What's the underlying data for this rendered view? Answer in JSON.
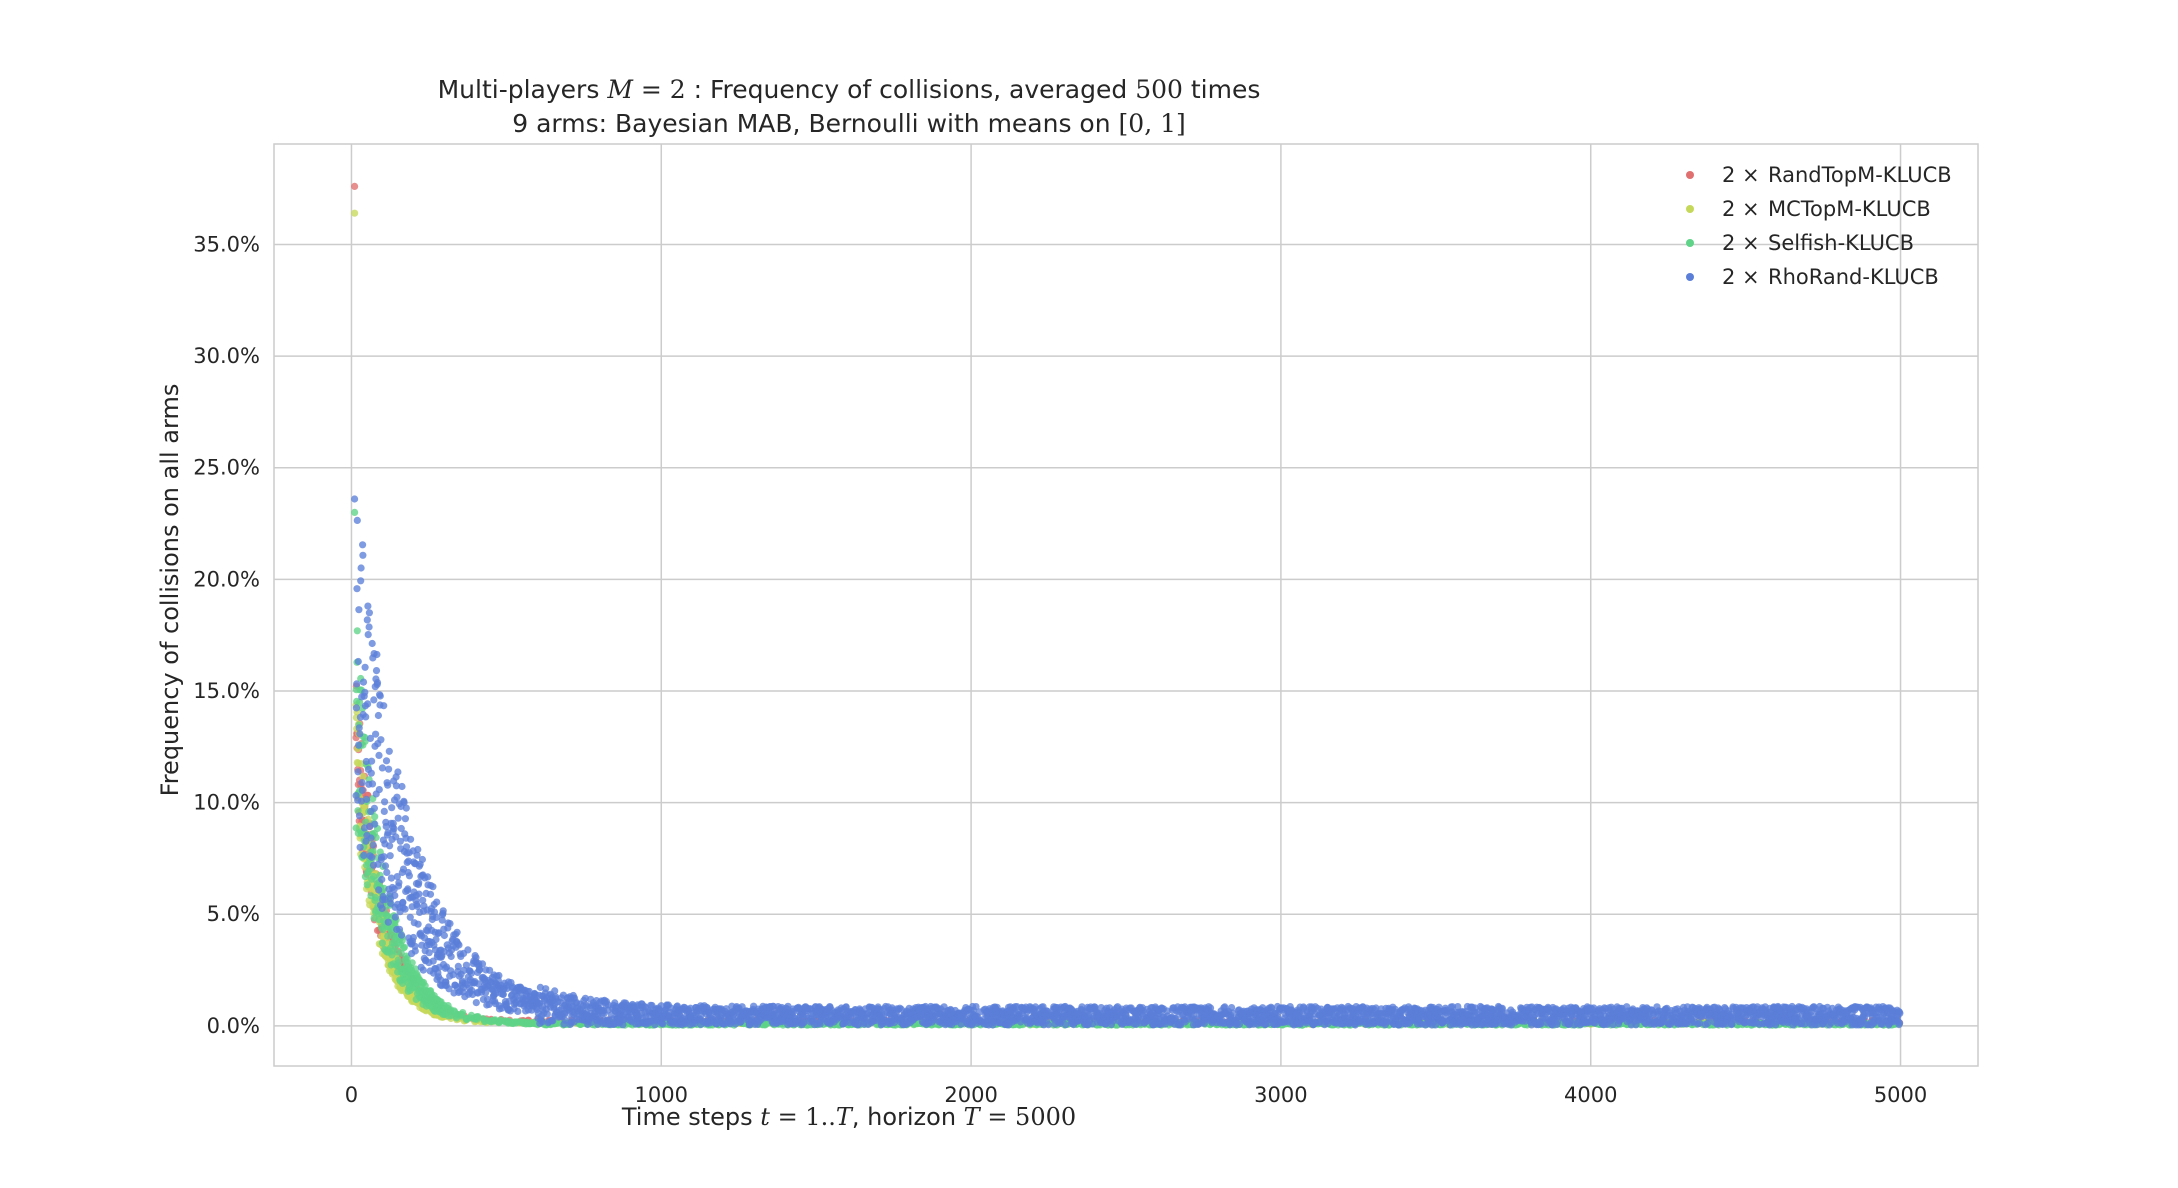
{
  "chart_data": {
    "type": "scatter",
    "title_parts": [
      {
        "text": "Multi-players ",
        "math": false
      },
      {
        "text": "M",
        "math": true
      },
      {
        "text": " = 2",
        "math": "up"
      },
      {
        "text": " : Frequency of collisions, averaged ",
        "math": false
      },
      {
        "text": "500",
        "math": "up"
      },
      {
        "text": " times",
        "math": false
      }
    ],
    "subtitle_parts": [
      {
        "text": "9 arms: Bayesian MAB, Bernoulli with means on ",
        "math": false
      },
      {
        "text": "[0, 1]",
        "math": "up"
      }
    ],
    "xlabel_parts": [
      {
        "text": "Time steps ",
        "math": false
      },
      {
        "text": "t",
        "math": true
      },
      {
        "text": " = 1..",
        "math": "up"
      },
      {
        "text": "T",
        "math": true
      },
      {
        "text": ", horizon ",
        "math": false
      },
      {
        "text": "T",
        "math": true
      },
      {
        "text": " = 5000",
        "math": "up"
      }
    ],
    "ylabel": "Frequency of collisions on all arms",
    "xlim": [
      -250,
      5250
    ],
    "ylim": [
      -0.018,
      0.395
    ],
    "xticks": [
      0,
      1000,
      2000,
      3000,
      4000,
      5000
    ],
    "xtick_labels": [
      "0",
      "1000",
      "2000",
      "3000",
      "4000",
      "5000"
    ],
    "yticks": [
      0.0,
      0.05,
      0.1,
      0.15,
      0.2,
      0.25,
      0.3,
      0.35
    ],
    "ytick_labels": [
      "0.0%",
      "5.0%",
      "10.0%",
      "15.0%",
      "20.0%",
      "25.0%",
      "30.0%",
      "35.0%"
    ],
    "grid": true,
    "legend_position": "top-right",
    "series": [
      {
        "name": "RandTopM-KLUCB",
        "prefix": "2 ×",
        "color": "#e07070",
        "peak": 0.376,
        "start": 0.125,
        "decay": 85,
        "floor": 0.0018,
        "noise": 0.22,
        "density": 0.1
      },
      {
        "name": "MCTopM-KLUCB",
        "prefix": "2 ×",
        "color": "#c6d85a",
        "peak": 0.364,
        "start": 0.12,
        "decay": 80,
        "floor": 0.0012,
        "noise": 0.2,
        "density": 0.1
      },
      {
        "name": "Selfish-KLUCB",
        "prefix": "2 ×",
        "color": "#5fd488",
        "peak": 0.23,
        "start": 0.135,
        "decay": 95,
        "floor": 0.0009,
        "noise": 0.3,
        "density": 0.28
      },
      {
        "name": "RhoRand-KLUCB",
        "prefix": "2 ×",
        "color": "#5b7fd8",
        "peak": 0.236,
        "start": 0.16,
        "decay": 170,
        "floor": 0.0045,
        "noise": 0.42,
        "density": 0.7
      }
    ]
  }
}
